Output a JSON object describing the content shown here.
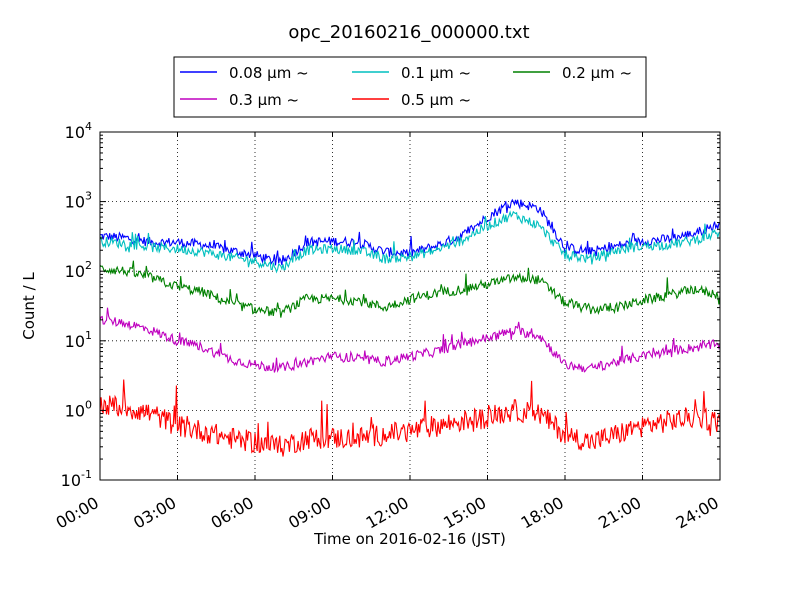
{
  "chart_data": {
    "type": "line",
    "title": "opc_20160216_000000.txt",
    "xlabel": "Time on 2016-02-16 (JST)",
    "ylabel": "Count / L",
    "y_scale": "log",
    "xlim": [
      "00:00",
      "24:00"
    ],
    "ylim": [
      0.1,
      10000
    ],
    "grid": true,
    "legend_position": "top (above plot)",
    "x_ticks": [
      "00:00",
      "03:00",
      "06:00",
      "09:00",
      "12:00",
      "15:00",
      "18:00",
      "21:00",
      "24:00"
    ],
    "y_ticks": [
      {
        "value": 0.1,
        "base": "10",
        "exp": "-1"
      },
      {
        "value": 1,
        "base": "10",
        "exp": "0"
      },
      {
        "value": 10,
        "base": "10",
        "exp": "1"
      },
      {
        "value": 100,
        "base": "10",
        "exp": "2"
      },
      {
        "value": 1000,
        "base": "10",
        "exp": "3"
      },
      {
        "value": 10000,
        "base": "10",
        "exp": "4"
      }
    ],
    "x": [
      "00:00",
      "01:00",
      "02:00",
      "03:00",
      "04:00",
      "05:00",
      "06:00",
      "07:00",
      "08:00",
      "09:00",
      "10:00",
      "11:00",
      "12:00",
      "13:00",
      "14:00",
      "15:00",
      "16:00",
      "17:00",
      "18:00",
      "19:00",
      "20:00",
      "21:00",
      "22:00",
      "23:00",
      "24:00"
    ],
    "series": [
      {
        "name": "0.08 μm ~",
        "color": "#0000ff",
        "values": [
          320,
          300,
          260,
          260,
          240,
          200,
          170,
          130,
          260,
          270,
          260,
          190,
          180,
          230,
          320,
          600,
          1000,
          800,
          220,
          190,
          230,
          270,
          290,
          350,
          480
        ]
      },
      {
        "name": "0.1 μm ~",
        "color": "#00bfbf",
        "values": [
          270,
          250,
          220,
          210,
          190,
          160,
          140,
          110,
          200,
          210,
          200,
          150,
          160,
          200,
          280,
          450,
          650,
          450,
          170,
          150,
          200,
          230,
          240,
          280,
          360
        ]
      },
      {
        "name": "0.2 μm ~",
        "color": "#008000",
        "values": [
          110,
          100,
          80,
          60,
          50,
          35,
          28,
          25,
          40,
          40,
          38,
          30,
          40,
          48,
          55,
          65,
          80,
          75,
          35,
          28,
          30,
          38,
          45,
          55,
          45
        ]
      },
      {
        "name": "0.3 μm ~",
        "color": "#bf00bf",
        "values": [
          20,
          18,
          14,
          10,
          8,
          5.5,
          4.5,
          4,
          5,
          6,
          5.5,
          5,
          6,
          7,
          9,
          11,
          14,
          12,
          4.5,
          4,
          5,
          6,
          7,
          8,
          9
        ]
      },
      {
        "name": "0.5 μm ~",
        "color": "#ff0000",
        "values": [
          1.2,
          1.1,
          0.9,
          0.6,
          0.5,
          0.4,
          0.35,
          0.3,
          0.4,
          0.4,
          0.4,
          0.45,
          0.5,
          0.6,
          0.7,
          0.8,
          1.0,
          0.9,
          0.45,
          0.35,
          0.45,
          0.6,
          0.7,
          0.8,
          0.7
        ]
      }
    ]
  }
}
